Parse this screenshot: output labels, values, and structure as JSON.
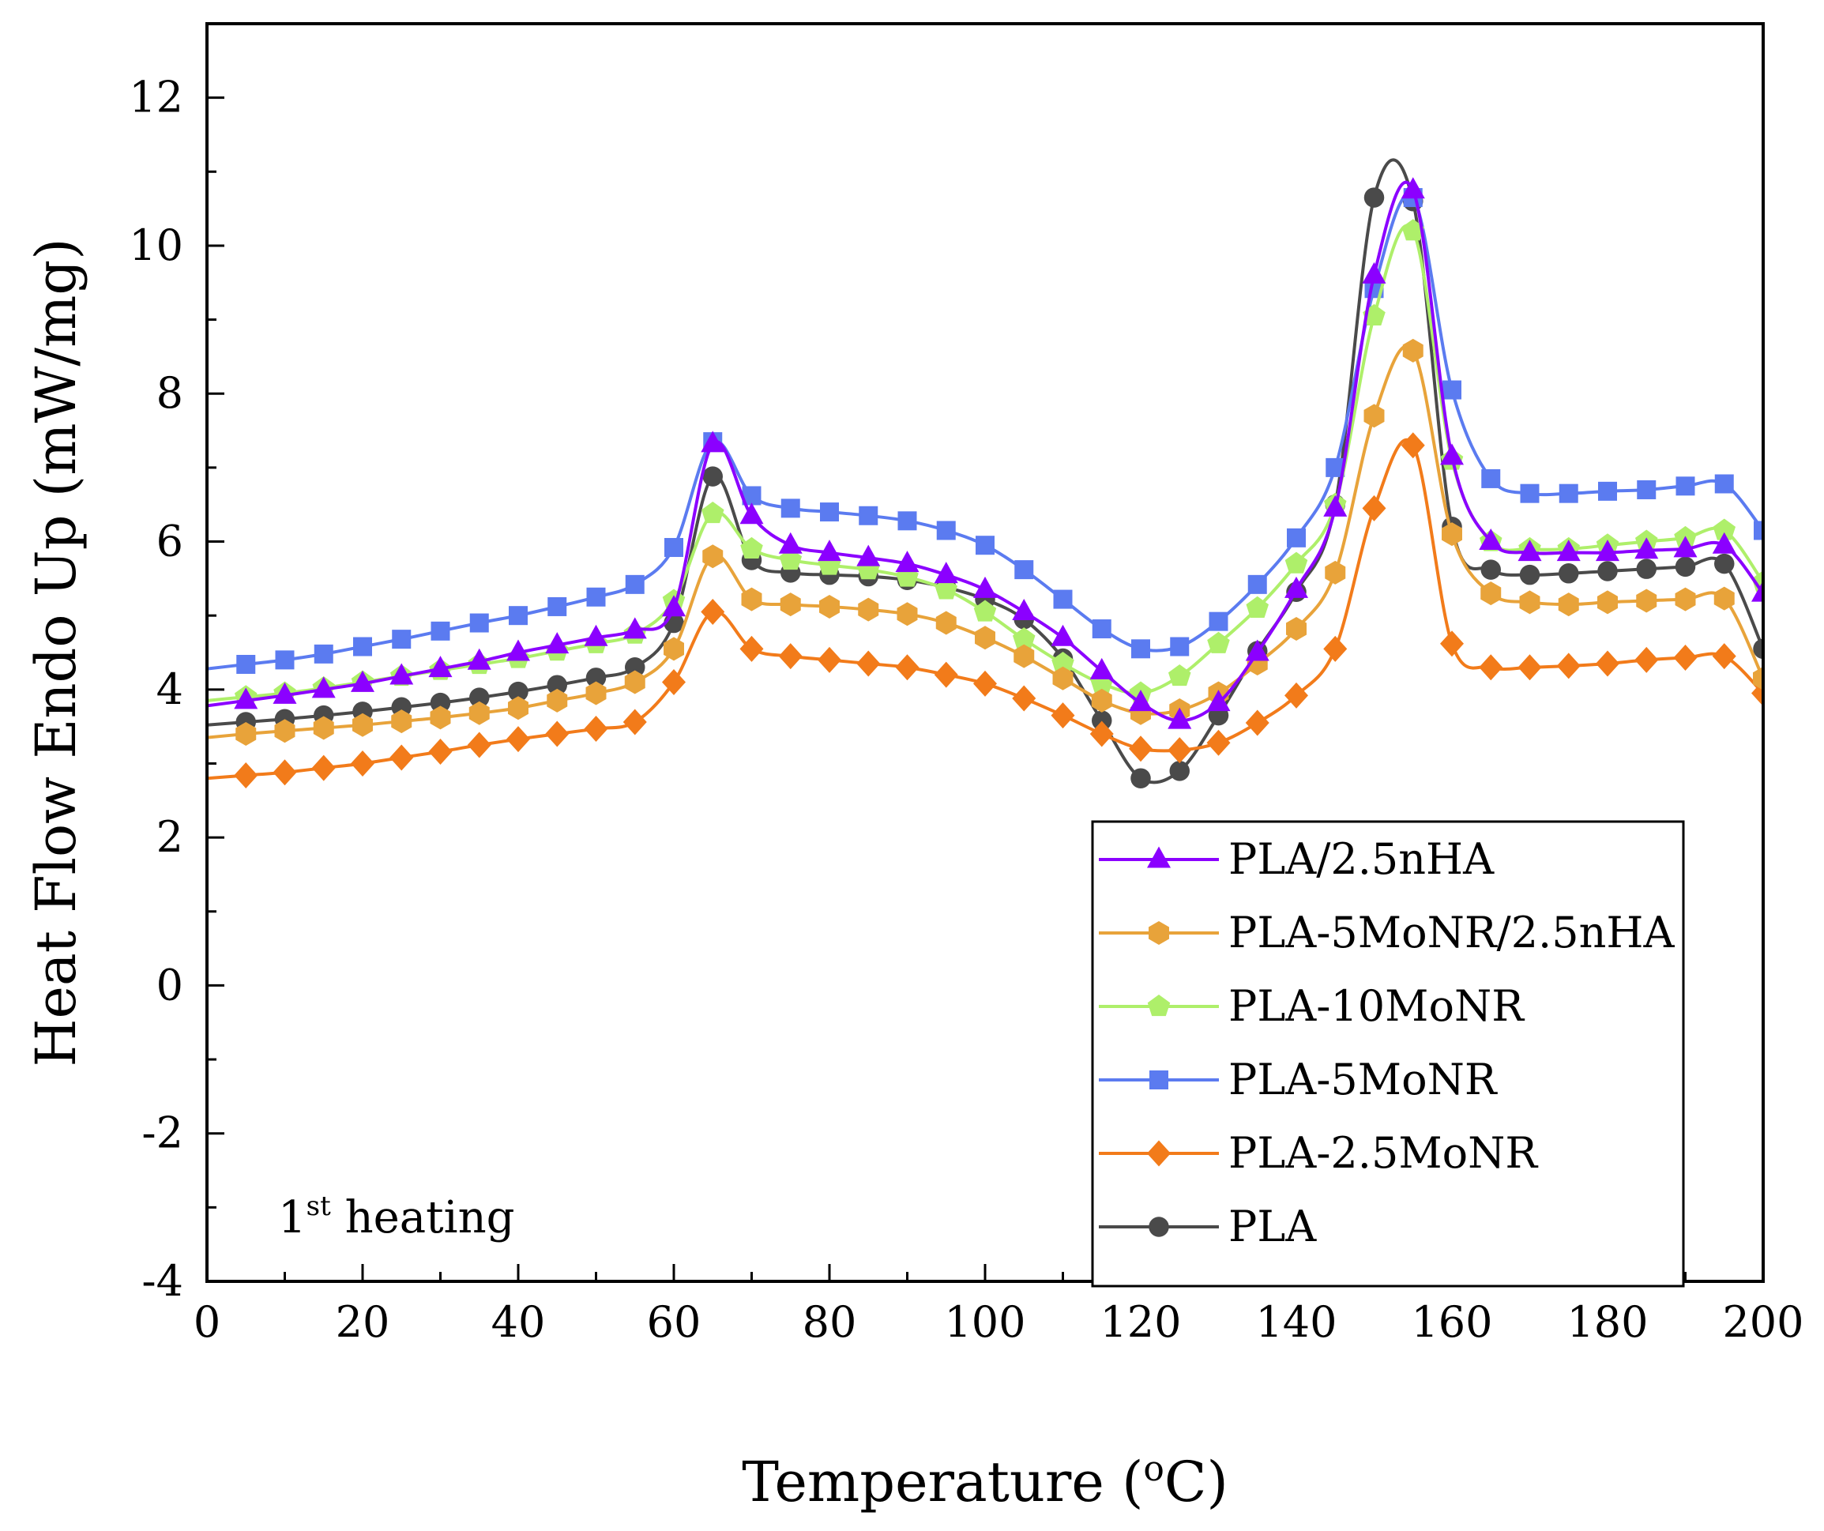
{
  "chart_data": {
    "type": "line",
    "title": "",
    "xlabel": "Temperature (°C)",
    "xlabel_parts": {
      "pre": "Temperature (",
      "sup": "o",
      "post": "C)"
    },
    "ylabel": "Heat Flow Endo Up (mW/mg)",
    "xlim": [
      0,
      200
    ],
    "ylim": [
      -4,
      13
    ],
    "x_ticks": [
      0,
      20,
      40,
      60,
      80,
      100,
      120,
      140,
      160,
      180,
      200
    ],
    "y_ticks": [
      -4,
      -2,
      0,
      2,
      4,
      6,
      8,
      10,
      12
    ],
    "x_tick_labels": [
      "0",
      "20",
      "40",
      "60",
      "80",
      "100",
      "120",
      "140",
      "160",
      "180",
      "200"
    ],
    "y_tick_labels": [
      "-4",
      "-2",
      "0",
      "2",
      "4",
      "6",
      "8",
      "10",
      "12"
    ],
    "grid": false,
    "legend_position": "bottom-right",
    "annotation": {
      "pre": "1",
      "sup": "st",
      "post": " heating"
    },
    "x": [
      0,
      5,
      10,
      15,
      20,
      25,
      30,
      35,
      40,
      45,
      50,
      55,
      60,
      65,
      70,
      75,
      80,
      85,
      90,
      95,
      100,
      105,
      110,
      115,
      120,
      125,
      130,
      135,
      140,
      145,
      150,
      155,
      160,
      165,
      170,
      175,
      180,
      185,
      190,
      195,
      200
    ],
    "series": [
      {
        "name": "PLA/2.5nHA",
        "color": "#8B00FF",
        "marker": "triangle",
        "values": [
          3.78,
          3.85,
          3.92,
          4.0,
          4.08,
          4.18,
          4.28,
          4.38,
          4.5,
          4.6,
          4.7,
          4.8,
          5.1,
          7.32,
          6.35,
          5.95,
          5.85,
          5.78,
          5.7,
          5.55,
          5.35,
          5.05,
          4.7,
          4.25,
          3.82,
          3.58,
          3.82,
          4.5,
          5.35,
          6.45,
          9.6,
          10.75,
          7.15,
          6.0,
          5.85,
          5.85,
          5.85,
          5.88,
          5.9,
          5.95,
          5.3
        ]
      },
      {
        "name": "PLA-5MoNR/2.5nHA",
        "color": "#E8A33A",
        "marker": "hexagon",
        "values": [
          3.35,
          3.4,
          3.44,
          3.48,
          3.52,
          3.57,
          3.62,
          3.68,
          3.75,
          3.85,
          3.95,
          4.1,
          4.55,
          5.8,
          5.22,
          5.15,
          5.12,
          5.08,
          5.02,
          4.9,
          4.7,
          4.45,
          4.15,
          3.85,
          3.68,
          3.72,
          3.95,
          4.35,
          4.82,
          5.58,
          7.7,
          8.58,
          6.1,
          5.3,
          5.18,
          5.15,
          5.18,
          5.2,
          5.22,
          5.23,
          4.15
        ]
      },
      {
        "name": "PLA-10MoNR",
        "color": "#AEEF6A",
        "marker": "pentagon",
        "values": [
          3.85,
          3.9,
          3.95,
          4.02,
          4.1,
          4.18,
          4.26,
          4.34,
          4.42,
          4.52,
          4.62,
          4.75,
          5.2,
          6.38,
          5.9,
          5.75,
          5.68,
          5.62,
          5.52,
          5.35,
          5.05,
          4.68,
          4.35,
          4.08,
          3.95,
          4.18,
          4.62,
          5.1,
          5.7,
          6.5,
          9.05,
          10.2,
          7.1,
          6.0,
          5.9,
          5.9,
          5.95,
          6.0,
          6.05,
          6.15,
          5.45
        ]
      },
      {
        "name": "PLA-5MoNR",
        "color": "#5B7BF0",
        "marker": "square",
        "values": [
          4.28,
          4.34,
          4.4,
          4.48,
          4.58,
          4.68,
          4.79,
          4.9,
          5.0,
          5.12,
          5.25,
          5.42,
          5.92,
          7.35,
          6.62,
          6.45,
          6.4,
          6.35,
          6.28,
          6.15,
          5.95,
          5.62,
          5.22,
          4.82,
          4.55,
          4.58,
          4.92,
          5.42,
          6.05,
          7.0,
          9.42,
          10.65,
          8.05,
          6.85,
          6.65,
          6.65,
          6.68,
          6.7,
          6.75,
          6.78,
          6.15
        ]
      },
      {
        "name": "PLA-2.5MoNR",
        "color": "#F27B1A",
        "marker": "diamond",
        "values": [
          2.8,
          2.84,
          2.88,
          2.94,
          3.0,
          3.08,
          3.16,
          3.25,
          3.33,
          3.4,
          3.47,
          3.56,
          4.1,
          5.05,
          4.55,
          4.45,
          4.4,
          4.35,
          4.3,
          4.2,
          4.08,
          3.88,
          3.65,
          3.4,
          3.2,
          3.18,
          3.28,
          3.55,
          3.92,
          4.55,
          6.45,
          7.3,
          4.62,
          4.3,
          4.3,
          4.32,
          4.35,
          4.4,
          4.43,
          4.45,
          3.95
        ]
      },
      {
        "name": "PLA",
        "color": "#4A4A4A",
        "marker": "circle",
        "values": [
          3.52,
          3.56,
          3.6,
          3.65,
          3.7,
          3.76,
          3.82,
          3.89,
          3.97,
          4.06,
          4.16,
          4.3,
          4.9,
          6.88,
          5.75,
          5.58,
          5.55,
          5.53,
          5.48,
          5.38,
          5.22,
          4.95,
          4.42,
          3.58,
          2.8,
          2.9,
          3.65,
          4.52,
          5.32,
          6.5,
          10.65,
          10.6,
          6.2,
          5.62,
          5.55,
          5.57,
          5.6,
          5.63,
          5.66,
          5.7,
          4.55
        ]
      }
    ]
  }
}
